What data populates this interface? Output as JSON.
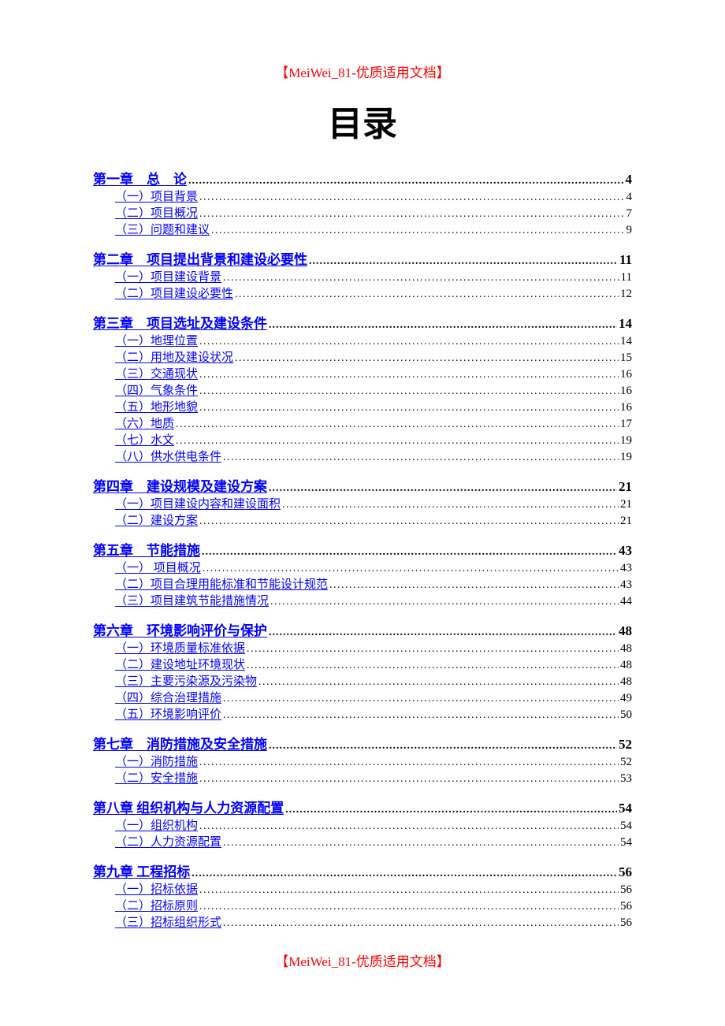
{
  "header": "【MeiWei_81-优质适用文档】",
  "footer": "【MeiWei_81-优质适用文档】",
  "title": "目录",
  "colors": {
    "link": "#0000ff",
    "accent": "#ff0000",
    "text": "#000000",
    "background": "#ffffff"
  },
  "fontSizes": {
    "title": 44,
    "chapter": 17,
    "sub": 15,
    "headerFooter": 17
  },
  "chapters": [
    {
      "label": "第一章　总　论",
      "page": 4,
      "subs": [
        {
          "label": "（一）项目背景",
          "page": 4
        },
        {
          "label": "（二）项目概况",
          "page": 7
        },
        {
          "label": "（三）问题和建议",
          "page": 9
        }
      ]
    },
    {
      "label": "第二章　项目提出背景和建设必要性",
      "page": 11,
      "subs": [
        {
          "label": "（一）项目建设背景",
          "page": 11
        },
        {
          "label": "（二）项目建设必要性",
          "page": 12
        }
      ]
    },
    {
      "label": "第三章　项目选址及建设条件",
      "page": 14,
      "subs": [
        {
          "label": "（一）地理位置",
          "page": 14
        },
        {
          "label": "（二）用地及建设状况",
          "page": 15
        },
        {
          "label": "（三）交通现状",
          "page": 16
        },
        {
          "label": "（四）气象条件",
          "page": 16
        },
        {
          "label": "（五）地形地貌",
          "page": 16
        },
        {
          "label": "（六）地质",
          "page": 17
        },
        {
          "label": "（七）水文",
          "page": 19
        },
        {
          "label": "（八）供水供电条件",
          "page": 19
        }
      ]
    },
    {
      "label": "第四章　建设规模及建设方案",
      "page": 21,
      "subs": [
        {
          "label": "（一）项目建设内容和建设面积",
          "page": 21
        },
        {
          "label": "（二）建设方案",
          "page": 21
        }
      ]
    },
    {
      "label": "第五章　节能措施",
      "page": 43,
      "subs": [
        {
          "label": "（一） 项目概况",
          "page": 43
        },
        {
          "label": "（二）项目合理用能标准和节能设计规范",
          "page": 43
        },
        {
          "label": "（三）项目建筑节能措施情况",
          "page": 44
        }
      ]
    },
    {
      "label": "第六章　环境影响评价与保护",
      "page": 48,
      "subs": [
        {
          "label": "（一）环境质量标准依据",
          "page": 48
        },
        {
          "label": "（二）建设地址环境现状",
          "page": 48
        },
        {
          "label": "（三）主要污染源及污染物",
          "page": 48
        },
        {
          "label": "（四）综合治理措施",
          "page": 49
        },
        {
          "label": "（五）环境影响评价",
          "page": 50
        }
      ]
    },
    {
      "label": "第七章　消防措施及安全措施",
      "page": 52,
      "subs": [
        {
          "label": "（一）消防措施",
          "page": 52
        },
        {
          "label": "（二）安全措施",
          "page": 53
        }
      ]
    },
    {
      "label": "第八章  组织机构与人力资源配置",
      "page": 54,
      "subs": [
        {
          "label": "（一）组织机构",
          "page": 54
        },
        {
          "label": "（二）人力资源配置",
          "page": 54
        }
      ]
    },
    {
      "label": "第九章  工程招标",
      "page": 56,
      "subs": [
        {
          "label": "（一）招标依据",
          "page": 56
        },
        {
          "label": "（二）招标原则",
          "page": 56
        },
        {
          "label": "（三）招标组织形式",
          "page": 56
        }
      ]
    }
  ]
}
